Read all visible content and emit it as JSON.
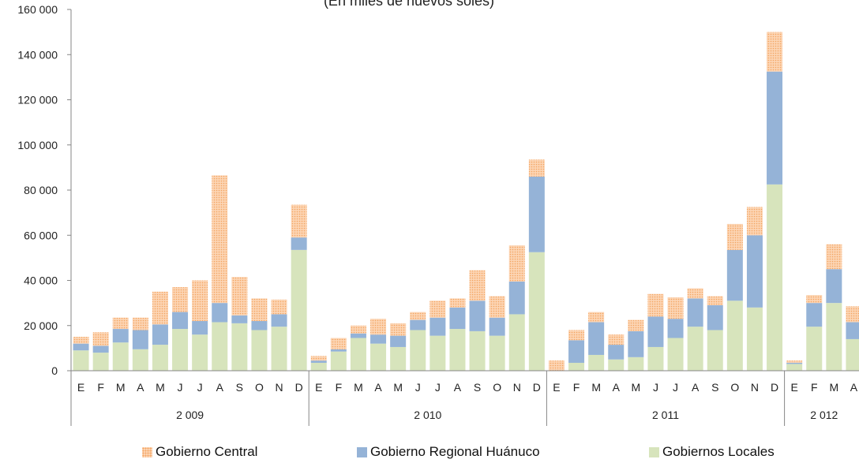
{
  "chart_data": {
    "type": "bar",
    "stacked": true,
    "title": "(En miles de nuevos soles)",
    "ylim": [
      0,
      160000
    ],
    "yticks": [
      0,
      20000,
      40000,
      60000,
      80000,
      100000,
      120000,
      140000,
      160000
    ],
    "ytick_labels": [
      "0",
      "20 000",
      "40 000",
      "60 000",
      "80 000",
      "100 000",
      "120 000",
      "140 000",
      "160 000"
    ],
    "categories": [
      "E",
      "F",
      "M",
      "A",
      "M",
      "J",
      "J",
      "A",
      "S",
      "O",
      "N",
      "D",
      "E",
      "F",
      "M",
      "A",
      "M",
      "J",
      "J",
      "A",
      "S",
      "O",
      "N",
      "D",
      "E",
      "F",
      "M",
      "A",
      "M",
      "J",
      "J",
      "A",
      "S",
      "O",
      "N",
      "D",
      "E",
      "F",
      "M",
      "A"
    ],
    "groups": [
      {
        "label": "2 009",
        "count": 12
      },
      {
        "label": "2 010",
        "count": 12
      },
      {
        "label": "2 011",
        "count": 12
      },
      {
        "label": "2 012",
        "count": 4
      }
    ],
    "series": [
      {
        "name": "Gobiernos Locales",
        "color": "#d7e4bc",
        "values": [
          9000,
          8000,
          12500,
          9500,
          11500,
          18500,
          16000,
          21500,
          21000,
          18000,
          19500,
          53500,
          3500,
          8500,
          14500,
          12000,
          10500,
          18000,
          15500,
          18500,
          17500,
          15500,
          25000,
          52500,
          0,
          3500,
          7000,
          5000,
          6000,
          10500,
          14500,
          19500,
          18000,
          31000,
          28000,
          82500,
          3000,
          19500,
          30000,
          14000
        ]
      },
      {
        "name": "Gobierno Regional Huánuco",
        "color": "#95b3d7",
        "values": [
          3000,
          3000,
          6000,
          8500,
          9000,
          7500,
          6000,
          8500,
          3500,
          4000,
          5500,
          5500,
          1000,
          1000,
          2000,
          4000,
          5000,
          4500,
          8000,
          9500,
          13500,
          8000,
          14500,
          33500,
          0,
          10000,
          14500,
          6500,
          11500,
          13500,
          8500,
          12500,
          11000,
          22500,
          32000,
          50000,
          500,
          10500,
          15000,
          7500
        ]
      },
      {
        "name": "Gobierno Central",
        "color": "#fcd5b4",
        "values": [
          3000,
          6000,
          5000,
          5500,
          14500,
          11000,
          18000,
          56500,
          17000,
          10000,
          6500,
          14500,
          2000,
          5000,
          3500,
          7000,
          5500,
          3500,
          7500,
          4000,
          13500,
          9500,
          16000,
          7500,
          4500,
          4500,
          4500,
          4500,
          5000,
          10000,
          9500,
          4500,
          4000,
          11500,
          12500,
          17500,
          1000,
          3500,
          11000,
          7000
        ]
      }
    ],
    "legend_position": "bottom"
  }
}
